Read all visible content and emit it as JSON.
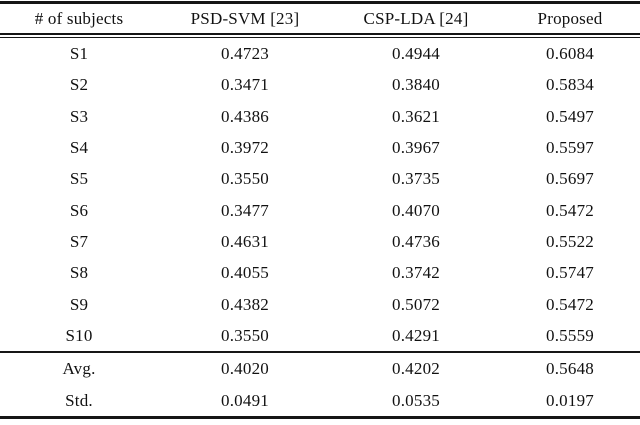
{
  "table": {
    "headers": [
      "# of subjects",
      "PSD-SVM [23]",
      "CSP-LDA [24]",
      "Proposed"
    ],
    "rows": [
      {
        "label": "S1",
        "values": [
          "0.4723",
          "0.4944",
          "0.6084"
        ]
      },
      {
        "label": "S2",
        "values": [
          "0.3471",
          "0.3840",
          "0.5834"
        ]
      },
      {
        "label": "S3",
        "values": [
          "0.4386",
          "0.3621",
          "0.5497"
        ]
      },
      {
        "label": "S4",
        "values": [
          "0.3972",
          "0.3967",
          "0.5597"
        ]
      },
      {
        "label": "S5",
        "values": [
          "0.3550",
          "0.3735",
          "0.5697"
        ]
      },
      {
        "label": "S6",
        "values": [
          "0.3477",
          "0.4070",
          "0.5472"
        ]
      },
      {
        "label": "S7",
        "values": [
          "0.4631",
          "0.4736",
          "0.5522"
        ]
      },
      {
        "label": "S8",
        "values": [
          "0.4055",
          "0.3742",
          "0.5747"
        ]
      },
      {
        "label": "S9",
        "values": [
          "0.4382",
          "0.5072",
          "0.5472"
        ]
      },
      {
        "label": "S10",
        "values": [
          "0.3550",
          "0.4291",
          "0.5559"
        ]
      }
    ],
    "summary": [
      {
        "label": "Avg.",
        "values": [
          "0.4020",
          "0.4202",
          "0.5648"
        ]
      },
      {
        "label": "Std.",
        "values": [
          "0.0491",
          "0.0535",
          "0.0197"
        ]
      }
    ],
    "colors": {
      "text": "#111111",
      "rule": "#161616",
      "background": "#ffffff"
    }
  }
}
